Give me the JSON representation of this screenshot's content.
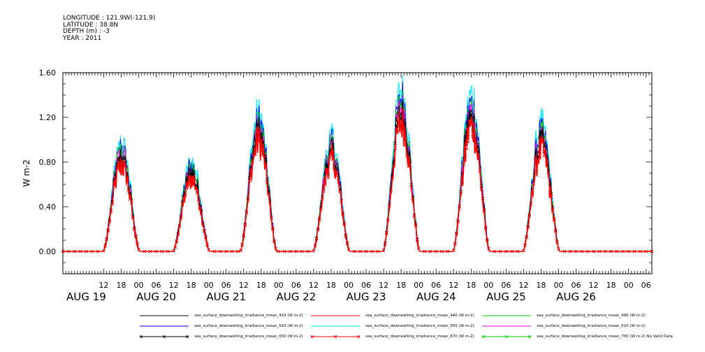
{
  "header": {
    "longitude": "LONGITUDE : 121.9W(-121.9)",
    "latitude": "LATITUDE : 38.8N",
    "depth": "DEPTH (m) : -3",
    "year": "YEAR : 2011"
  },
  "chart_data": {
    "type": "line",
    "ylabel": "W m-2",
    "ylim": [
      -0.2,
      1.6
    ],
    "y_ticks": [
      "0.00",
      "0.40",
      "0.80",
      "1.20",
      "1.60"
    ],
    "y_tick_values": [
      0.0,
      0.4,
      0.8,
      1.2,
      1.6
    ],
    "x_tick_labels": [
      "12",
      "18",
      "00",
      "06",
      "12",
      "18",
      "00",
      "06",
      "12",
      "18",
      "00",
      "06",
      "12",
      "18",
      "00",
      "06",
      "12",
      "18",
      "00",
      "06",
      "12",
      "18",
      "00",
      "06",
      "12",
      "18",
      "00",
      "06",
      "12",
      "18",
      "00",
      "06"
    ],
    "x_tick_hours": [
      12,
      18,
      24,
      30,
      36,
      42,
      48,
      54,
      60,
      66,
      72,
      78,
      84,
      90,
      96,
      102,
      108,
      114,
      120,
      126,
      132,
      138,
      144,
      150,
      156,
      162,
      168,
      174,
      180,
      186,
      192,
      198
    ],
    "day_labels": [
      "AUG 19",
      "AUG 20",
      "AUG 21",
      "AUG 22",
      "AUG 23",
      "AUG 24",
      "AUG 25",
      "AUG 26"
    ],
    "day_label_hours": [
      6,
      30,
      54,
      78,
      102,
      126,
      150,
      174
    ],
    "x_range_hours": [
      -2,
      200
    ],
    "daily_peaks": [
      {
        "day": "AUG 19",
        "peak_hour": 19,
        "peak_value": 0.9
      },
      {
        "day": "AUG 20",
        "peak_hour": 43,
        "peak_value": 0.75
      },
      {
        "day": "AUG 21",
        "peak_hour": 66,
        "peak_value": 1.15
      },
      {
        "day": "AUG 22",
        "peak_hour": 91,
        "peak_value": 0.95
      },
      {
        "day": "AUG 23",
        "peak_hour": 115,
        "peak_value": 1.35
      },
      {
        "day": "AUG 24",
        "peak_hour": 139,
        "peak_value": 1.3
      },
      {
        "day": "AUG 25",
        "peak_hour": 163,
        "peak_value": 1.05
      }
    ],
    "series": [
      {
        "name": "sea_surface_downwelling_irradiance_mean_410 (W m-2)",
        "color": "#000000",
        "scale": 0.92,
        "marker": "none"
      },
      {
        "name": "sea_surface_downwelling_irradiance_mean_440 (W m-2)",
        "color": "#ff0000",
        "scale": 0.86,
        "marker": "none"
      },
      {
        "name": "sea_surface_downwelling_irradiance_mean_490 (W m-2)",
        "color": "#00cc00",
        "scale": 0.97,
        "marker": "none"
      },
      {
        "name": "sea_surface_downwelling_irradiance_mean_510 (W m-2)",
        "color": "#0000ff",
        "scale": 1.0,
        "marker": "none"
      },
      {
        "name": "sea_surface_downwelling_irradiance_mean_555 (W m-2)",
        "color": "#00e5ff",
        "scale": 1.06,
        "marker": "none"
      },
      {
        "name": "sea_surface_downwelling_irradiance_mean_610 (W m-2)",
        "color": "#ff00ff",
        "scale": 0.94,
        "marker": "none"
      },
      {
        "name": "sea_surface_downwelling_irradiance_mean_650 (W m-2)",
        "color": "#000000",
        "scale": 0.88,
        "marker": "x"
      },
      {
        "name": "sea_surface_downwelling_irradiance_mean_670 (W m-2)",
        "color": "#ff0000",
        "scale": 0.84,
        "marker": "x"
      },
      {
        "name": "sea_surface_downwelling_irradiance_mean_700 (W m-2) No Valid Data",
        "color": "#00cc00",
        "scale": 0,
        "marker": "x"
      }
    ],
    "grid": false,
    "legend_position": "bottom"
  }
}
